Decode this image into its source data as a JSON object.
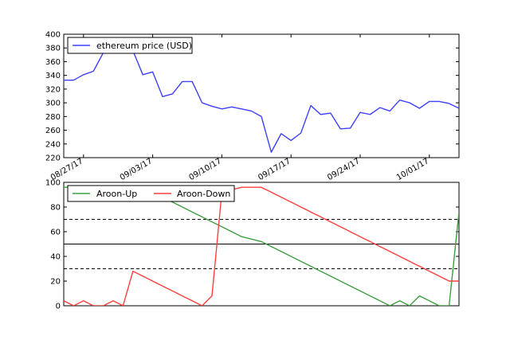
{
  "chart_data": [
    {
      "type": "line",
      "title": "",
      "xlabel": "",
      "ylabel": "",
      "ylim": [
        220,
        400
      ],
      "yticks": [
        220,
        240,
        260,
        280,
        300,
        320,
        340,
        360,
        380,
        400
      ],
      "xticks": [
        "08/27/17",
        "09/03/17",
        "09/10/17",
        "09/17/17",
        "09/24/17",
        "10/01/17"
      ],
      "xtick_positions": [
        2,
        9,
        16,
        23,
        30,
        37
      ],
      "legend_position": "upper-left",
      "grid": false,
      "series": [
        {
          "name": "ethereum price (USD)",
          "color": "#3f3fff",
          "x": [
            0,
            1,
            2,
            3,
            4,
            5,
            6,
            7,
            8,
            9,
            10,
            11,
            12,
            13,
            14,
            15,
            16,
            17,
            18,
            19,
            20,
            21,
            22,
            23,
            24,
            25,
            26,
            27,
            28,
            29,
            30,
            31,
            32,
            33,
            34,
            35,
            36,
            37,
            38,
            39,
            40
          ],
          "values": [
            333,
            333,
            341,
            346,
            373,
            380,
            377,
            376,
            341,
            345,
            309,
            313,
            331,
            331,
            300,
            295,
            291,
            294,
            291,
            288,
            280,
            228,
            255,
            245,
            256,
            296,
            283,
            285,
            262,
            263,
            286,
            283,
            293,
            288,
            304,
            300,
            292,
            302,
            302,
            299,
            292
          ]
        }
      ]
    },
    {
      "type": "line",
      "title": "",
      "xlabel": "",
      "ylabel": "",
      "ylim": [
        0,
        100
      ],
      "yticks": [
        0,
        20,
        40,
        60,
        80,
        100
      ],
      "legend_position": "upper-left",
      "grid": false,
      "reference_lines": [
        {
          "y": 70,
          "style": "dashed"
        },
        {
          "y": 50,
          "style": "solid"
        },
        {
          "y": 30,
          "style": "dashed"
        }
      ],
      "series": [
        {
          "name": "Aroon-Up",
          "color": "#3f9f3f",
          "x": [
            0,
            1,
            2,
            3,
            4,
            5,
            6,
            7,
            8,
            9,
            10,
            11,
            12,
            13,
            14,
            15,
            16,
            17,
            18,
            19,
            20,
            21,
            22,
            23,
            24,
            25,
            26,
            27,
            28,
            29,
            30,
            31,
            32,
            33,
            34,
            35,
            36,
            37,
            38,
            39,
            40
          ],
          "values": [
            96,
            96,
            96,
            96,
            96,
            96,
            96,
            96,
            96,
            92,
            88,
            84,
            80,
            76,
            72,
            68,
            64,
            60,
            56,
            54,
            52,
            48,
            44,
            40,
            36,
            32,
            28,
            24,
            20,
            16,
            12,
            8,
            4,
            0,
            4,
            0,
            8,
            4,
            0,
            0,
            76
          ]
        },
        {
          "name": "Aroon-Down",
          "color": "#ff3f3f",
          "x": [
            0,
            1,
            2,
            3,
            4,
            5,
            6,
            7,
            8,
            9,
            10,
            11,
            12,
            13,
            14,
            15,
            16,
            17,
            18,
            19,
            20,
            21,
            22,
            23,
            24,
            25,
            26,
            27,
            28,
            29,
            30,
            31,
            32,
            33,
            34,
            35,
            36,
            37,
            38,
            39,
            40
          ],
          "values": [
            4,
            0,
            4,
            0,
            0,
            4,
            0,
            28,
            24,
            20,
            16,
            12,
            8,
            4,
            0,
            8,
            92,
            94,
            96,
            96,
            96,
            92,
            88,
            84,
            80,
            76,
            72,
            68,
            64,
            60,
            56,
            52,
            48,
            44,
            40,
            36,
            32,
            28,
            24,
            20,
            20
          ]
        }
      ]
    }
  ]
}
